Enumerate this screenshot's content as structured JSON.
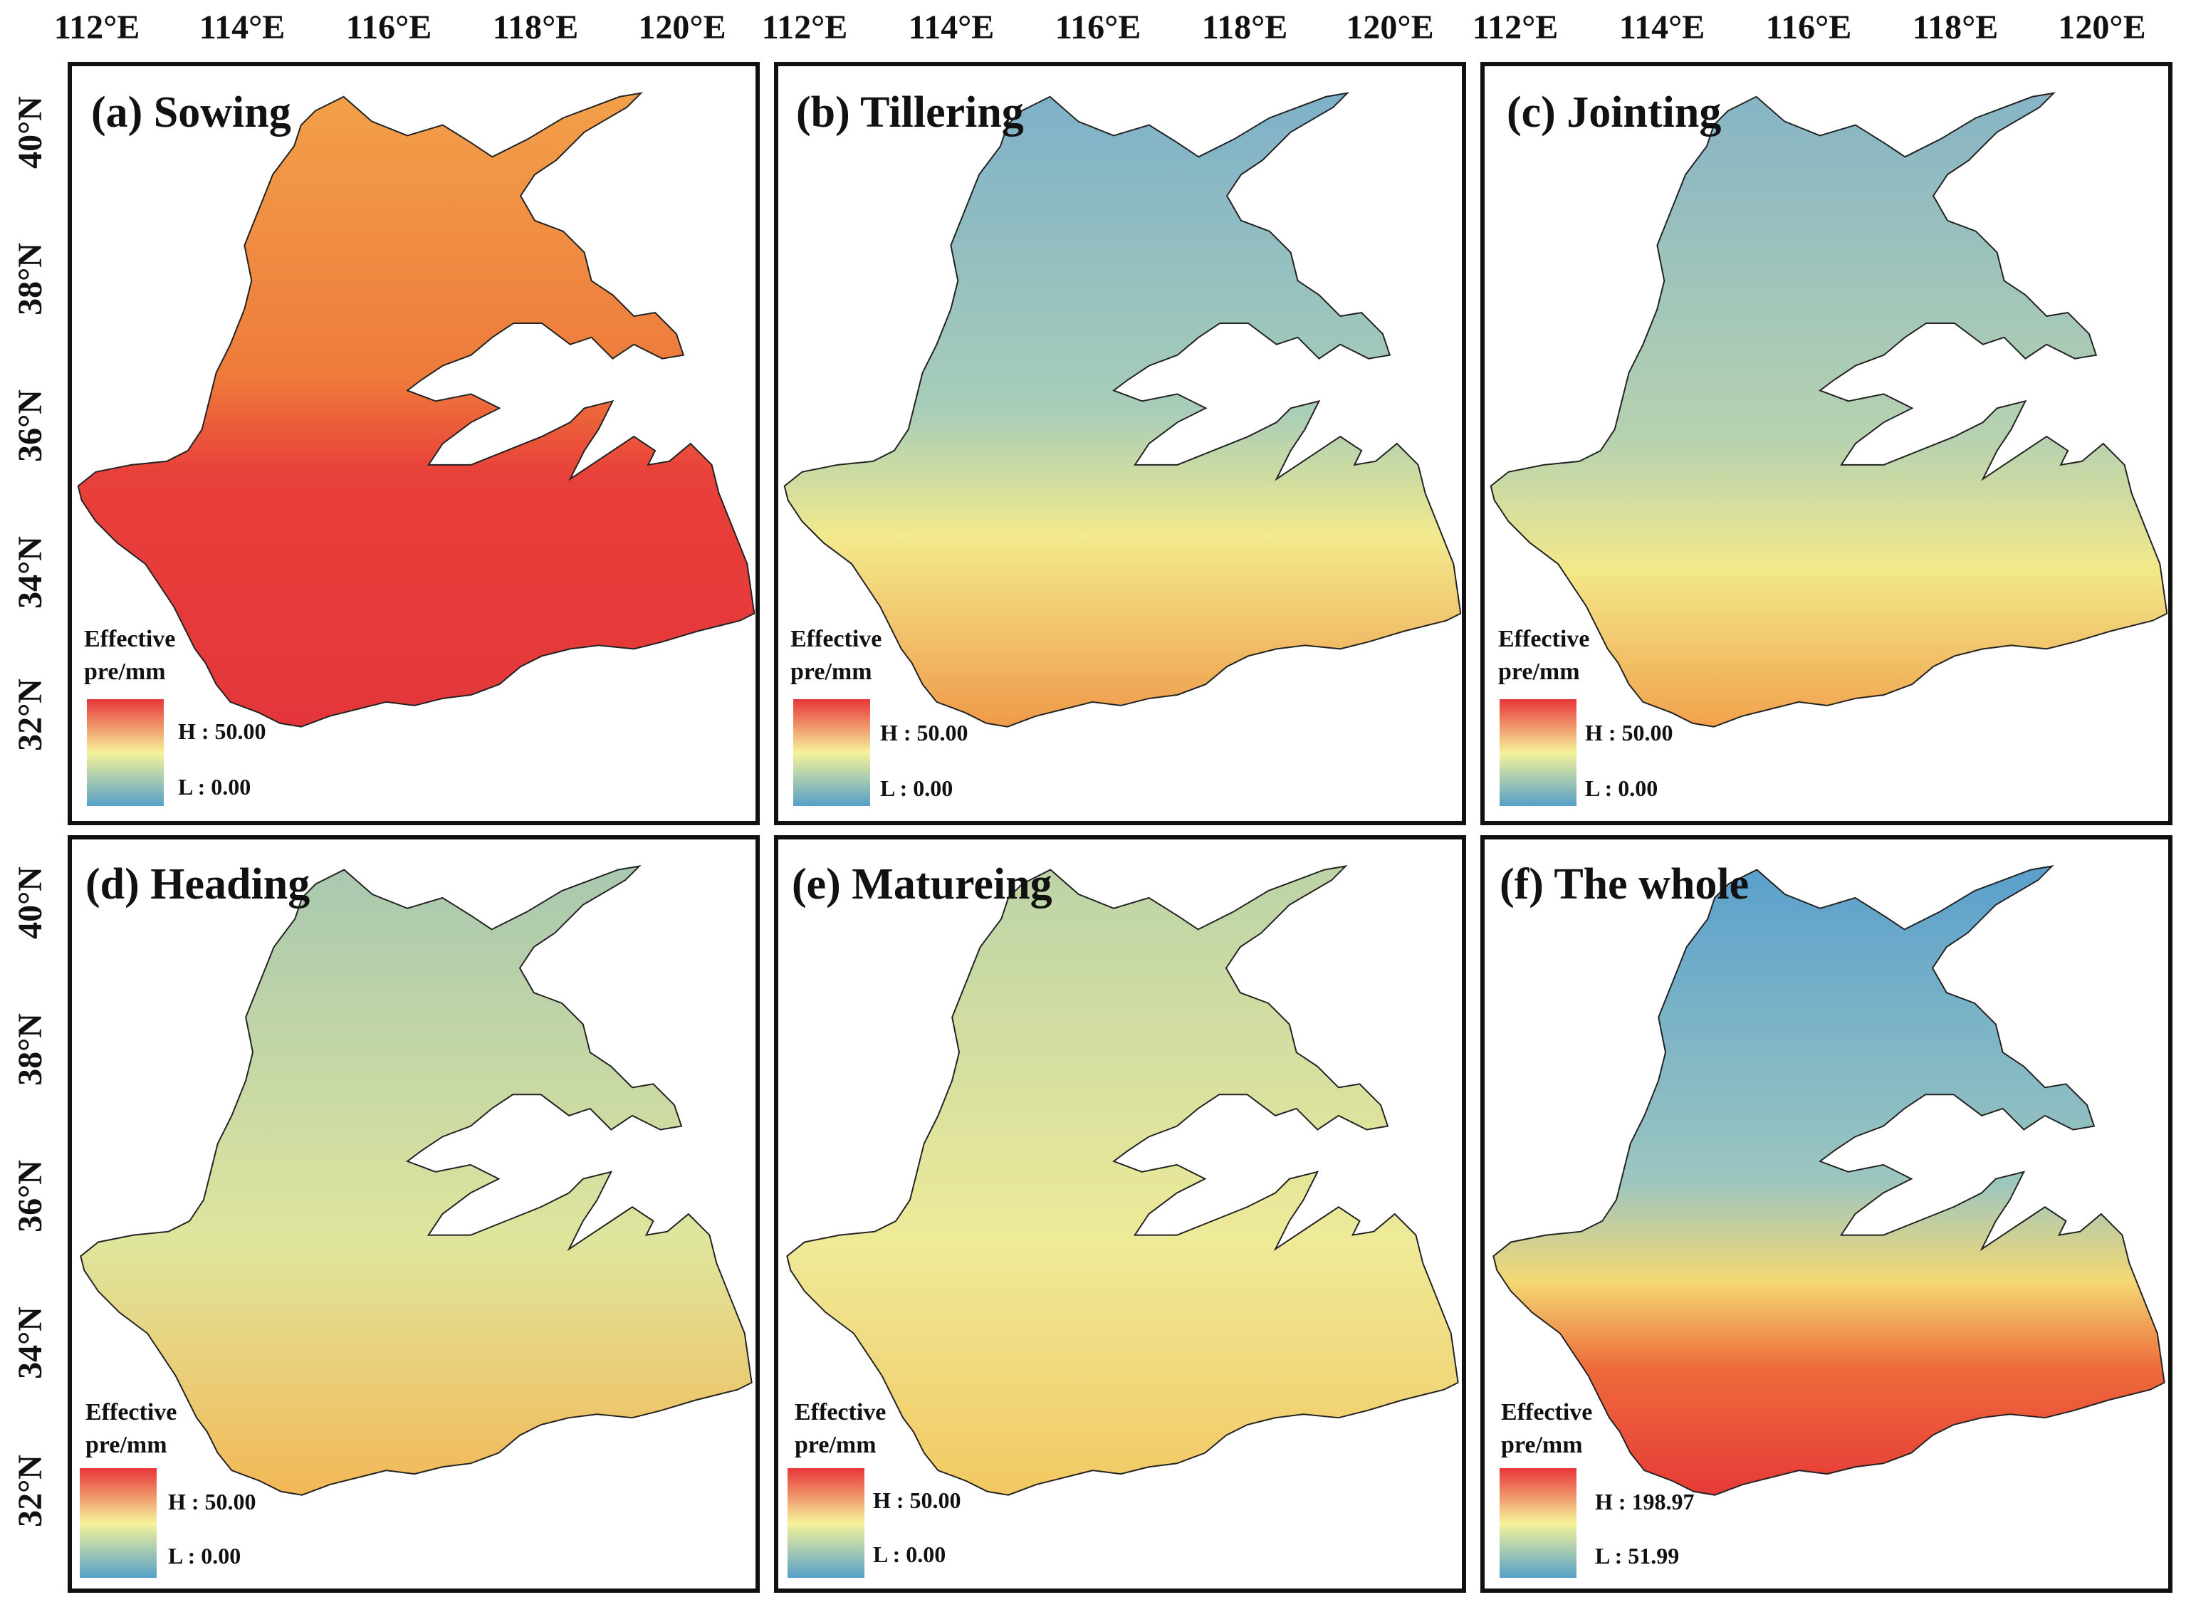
{
  "figure": {
    "axes": {
      "lon_labels": [
        "112°E",
        "114°E",
        "116°E",
        "118°E",
        "120°E"
      ],
      "lat_labels": [
        "40°N",
        "38°N",
        "36°N",
        "34°N",
        "32°N"
      ],
      "lon_values": [
        112,
        114,
        116,
        118,
        120
      ],
      "lat_values": [
        40,
        38,
        36,
        34,
        32
      ]
    },
    "panels": [
      {
        "id": "a",
        "title": "(a) Sowing",
        "legend_label_1": "Effective",
        "legend_label_2": "pre/mm",
        "high": "H : 50.00",
        "low": "L : 0.00",
        "fill": "#e83a32"
      },
      {
        "id": "b",
        "title": "(b) Tillering",
        "legend_label_1": "Effective",
        "legend_label_2": "pre/mm",
        "high": "H : 50.00",
        "low": "L : 0.00",
        "fill": "#84b6c6"
      },
      {
        "id": "c",
        "title": "(c) Jointing",
        "legend_label_1": "Effective",
        "legend_label_2": "pre/mm",
        "high": "H : 50.00",
        "low": "L : 0.00",
        "fill": "#8fbcc2"
      },
      {
        "id": "d",
        "title": "(d) Heading",
        "legend_label_1": "Effective",
        "legend_label_2": "pre/mm",
        "high": "H : 50.00",
        "low": "L : 0.00",
        "fill": "#b5ccaa"
      },
      {
        "id": "e",
        "title": "(e) Matureing",
        "legend_label_1": "Effective",
        "legend_label_2": "pre/mm",
        "high": "H : 50.00",
        "low": "L : 0.00",
        "fill": "#cfdc9c"
      },
      {
        "id": "f",
        "title": "(f) The whole",
        "legend_label_1": "Effective",
        "legend_label_2": "pre/mm",
        "high": "H : 198.97",
        "low": "L : 51.99",
        "fill": "#6aa6c8"
      }
    ],
    "colors": {
      "ramp_high": "#e8353a",
      "ramp_mid": "#f6f39a",
      "ramp_low": "#56a0c8",
      "border": "#111111"
    }
  }
}
